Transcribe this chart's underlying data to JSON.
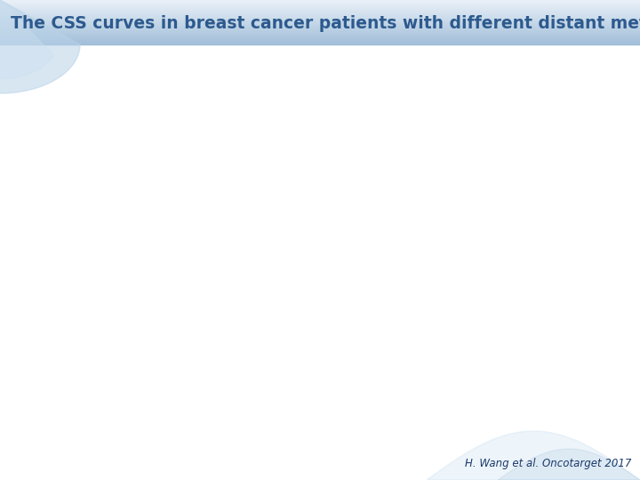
{
  "title": "The CSS curves in breast cancer patients with different distant metastasis sites",
  "title_color": "#2d5a8e",
  "title_fontsize": 13.5,
  "citation": "H. Wang et al. Oncotarget 2017",
  "citation_color": "#1a3a6b",
  "citation_fontsize": 8.5,
  "background_color": "#ffffff"
}
